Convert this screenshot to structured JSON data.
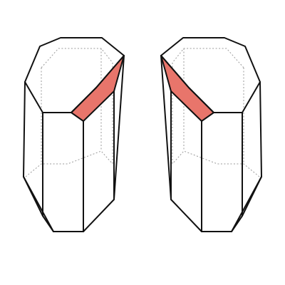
{
  "figure": {
    "crystals": [
      {
        "name": "left-crystal"
      },
      {
        "name": "right-crystal"
      }
    ]
  },
  "colors": {
    "edge": "#111111",
    "hidden_edge": "#9a9a9a",
    "highlight_face": "#e8756b",
    "background": "#ffffff"
  }
}
